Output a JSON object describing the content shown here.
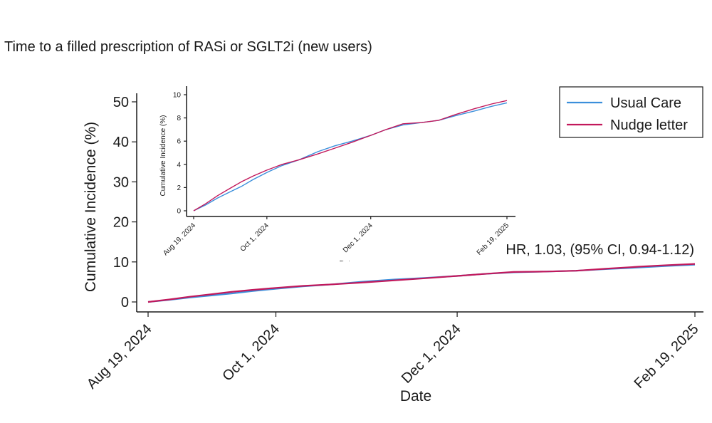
{
  "title": "Time to a filled prescription of RASi or SGLT2i (new users)",
  "annotation": "HR, 1.03, (95% CI, 0.94-1.12)",
  "colors": {
    "usual_care": "#3b8fdb",
    "nudge_letter": "#c2185b",
    "axis": "#1a1a1a"
  },
  "chart_data": [
    {
      "id": "main",
      "type": "line",
      "xlabel": "Date",
      "ylabel": "Cumulative Incidence (%)",
      "xlim": [
        "2024-08-19",
        "2025-02-19"
      ],
      "ylim": [
        0,
        50
      ],
      "yticks": [
        0,
        10,
        20,
        30,
        40,
        50
      ],
      "xticks": [
        {
          "date": "2024-08-19",
          "label": "Aug 19, 2024"
        },
        {
          "date": "2024-10-01",
          "label": "Oct 1, 2024"
        },
        {
          "date": "2024-12-01",
          "label": "Dec 1, 2024"
        },
        {
          "date": "2025-02-19",
          "label": "Feb 19, 2025"
        }
      ],
      "grid": false,
      "legend": {
        "position": "top-right",
        "entries": [
          "Usual Care",
          "Nudge letter"
        ]
      },
      "series": [
        {
          "name": "Usual Care",
          "x": [
            "2024-08-19",
            "2024-08-26",
            "2024-09-02",
            "2024-09-09",
            "2024-09-16",
            "2024-09-23",
            "2024-10-01",
            "2024-10-10",
            "2024-10-20",
            "2024-10-31",
            "2024-11-10",
            "2024-11-20",
            "2024-12-01",
            "2024-12-10",
            "2024-12-20",
            "2024-12-31",
            "2025-01-10",
            "2025-01-20",
            "2025-01-31",
            "2025-02-10",
            "2025-02-19"
          ],
          "y": [
            0.0,
            0.5,
            1.1,
            1.6,
            2.1,
            2.7,
            3.3,
            3.9,
            4.4,
            5.1,
            5.6,
            6.0,
            6.5,
            7.0,
            7.4,
            7.6,
            7.8,
            8.2,
            8.6,
            9.0,
            9.3
          ]
        },
        {
          "name": "Nudge letter",
          "x": [
            "2024-08-19",
            "2024-08-26",
            "2024-09-02",
            "2024-09-09",
            "2024-09-16",
            "2024-09-23",
            "2024-10-01",
            "2024-10-10",
            "2024-10-20",
            "2024-10-31",
            "2024-11-10",
            "2024-11-20",
            "2024-12-01",
            "2024-12-10",
            "2024-12-20",
            "2024-12-31",
            "2025-01-10",
            "2025-01-20",
            "2025-01-31",
            "2025-02-10",
            "2025-02-19"
          ],
          "y": [
            0.0,
            0.6,
            1.3,
            1.9,
            2.5,
            3.0,
            3.5,
            4.0,
            4.4,
            4.9,
            5.4,
            5.9,
            6.5,
            7.0,
            7.5,
            7.6,
            7.8,
            8.3,
            8.8,
            9.2,
            9.5
          ]
        }
      ]
    },
    {
      "id": "inset",
      "type": "line",
      "xlabel": "Date",
      "ylabel": "Cumulative Incidence (%)",
      "xlim": [
        "2024-08-19",
        "2025-02-19"
      ],
      "ylim": [
        0,
        10
      ],
      "yticks": [
        0,
        2,
        4,
        6,
        8,
        10
      ],
      "xticks": [
        {
          "date": "2024-08-19",
          "label": "Aug 19, 2024"
        },
        {
          "date": "2024-10-01",
          "label": "Oct 1, 2024"
        },
        {
          "date": "2024-12-01",
          "label": "Dec 1, 2024"
        },
        {
          "date": "2025-02-19",
          "label": "Feb 19, 2025"
        }
      ],
      "grid": false,
      "series": [
        {
          "name": "Usual Care",
          "x": [
            "2024-08-19",
            "2024-08-26",
            "2024-09-02",
            "2024-09-09",
            "2024-09-16",
            "2024-09-23",
            "2024-10-01",
            "2024-10-10",
            "2024-10-20",
            "2024-10-31",
            "2024-11-10",
            "2024-11-20",
            "2024-12-01",
            "2024-12-10",
            "2024-12-20",
            "2024-12-31",
            "2025-01-10",
            "2025-01-20",
            "2025-01-31",
            "2025-02-10",
            "2025-02-19"
          ],
          "y": [
            0.0,
            0.5,
            1.1,
            1.6,
            2.1,
            2.7,
            3.3,
            3.9,
            4.4,
            5.1,
            5.6,
            6.0,
            6.5,
            7.0,
            7.4,
            7.6,
            7.8,
            8.2,
            8.6,
            9.0,
            9.3
          ]
        },
        {
          "name": "Nudge letter",
          "x": [
            "2024-08-19",
            "2024-08-26",
            "2024-09-02",
            "2024-09-09",
            "2024-09-16",
            "2024-09-23",
            "2024-10-01",
            "2024-10-10",
            "2024-10-20",
            "2024-10-31",
            "2024-11-10",
            "2024-11-20",
            "2024-12-01",
            "2024-12-10",
            "2024-12-20",
            "2024-12-31",
            "2025-01-10",
            "2025-01-20",
            "2025-01-31",
            "2025-02-10",
            "2025-02-19"
          ],
          "y": [
            0.0,
            0.6,
            1.3,
            1.9,
            2.5,
            3.0,
            3.5,
            4.0,
            4.4,
            4.9,
            5.4,
            5.9,
            6.5,
            7.0,
            7.5,
            7.6,
            7.8,
            8.3,
            8.8,
            9.2,
            9.5
          ]
        }
      ]
    }
  ]
}
